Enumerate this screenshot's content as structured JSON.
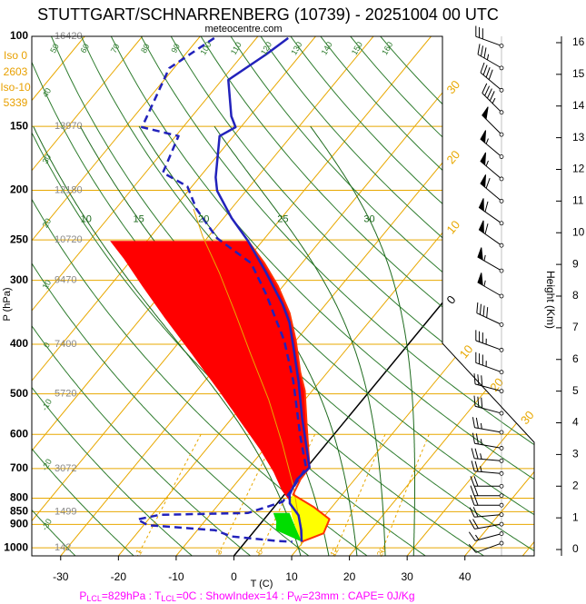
{
  "chart_data": {
    "type": "skewt",
    "title": "STUTTGART/SCHNARRENBERG (10739) - 20251004 00 UTC",
    "subtitle": "meteocentre.com",
    "xlabel": "T (C)",
    "ylabel": "P (hPa)",
    "y2label": "Height (Km)",
    "xlim": [
      -35,
      52
    ],
    "xticks": [
      -30,
      -20,
      -10,
      0,
      10,
      20,
      30,
      40
    ],
    "ylim": [
      1037,
      100
    ],
    "log_y": true,
    "yticks": [
      100,
      150,
      200,
      250,
      300,
      400,
      500,
      600,
      700,
      800,
      850,
      900,
      1000
    ],
    "y2lim": [
      -0.2,
      16.2
    ],
    "y2ticks": [
      0,
      1,
      2,
      3,
      4,
      5,
      6,
      7,
      8,
      9,
      10,
      11,
      12,
      13,
      14,
      15,
      16
    ],
    "gph_levels": [
      100,
      150,
      200,
      250,
      300,
      400,
      500,
      700,
      850,
      1000
    ],
    "gph": [
      16420,
      13970,
      12180,
      10720,
      9470,
      7400,
      5720,
      3072,
      1499,
      142
    ],
    "iso0_label": "Iso 0",
    "iso0_height": 2603,
    "iso10_label": "Iso-10",
    "iso10_height": 5339,
    "iso_color": "#e8a000",
    "isotherm_labels": [
      {
        "value": -30,
        "label": "30"
      },
      {
        "value": -20,
        "label": "20"
      },
      {
        "value": -10,
        "label": "10"
      },
      0,
      10,
      20,
      30
    ],
    "dry_adiabats": [
      -30,
      -20,
      -10,
      0,
      10,
      20,
      30,
      40,
      50,
      60,
      70,
      80,
      90,
      100,
      110,
      120,
      130,
      140,
      150,
      160
    ],
    "moist_adiabats": [
      10,
      15,
      20,
      25,
      30
    ],
    "mixing_ratios": [
      1,
      3,
      5,
      12,
      20
    ],
    "grid_color": "#e8a800",
    "adiabat_color": "#2f7d2f",
    "series": [
      {
        "color": "#2222bb",
        "dash": false,
        "p": [
          100.8,
          108.5,
          121.7,
          143.3,
          150.5,
          156.7,
          188.6,
          200.5,
          226.6,
          251.2,
          289.5,
          334,
          362.6,
          402,
          473,
          557,
          697,
          735,
          787,
          819,
          864,
          924,
          973
        ],
        "values": [
          -64.5,
          -66.0,
          -68.9,
          -63.2,
          -60.9,
          -62.4,
          -57.2,
          -55.0,
          -48.6,
          -42.5,
          -34.9,
          -27.5,
          -23.7,
          -19.8,
          -13.7,
          -7.9,
          0.5,
          0.0,
          0.9,
          2.2,
          5.4,
          8.0,
          9.7
        ]
      },
      {
        "color": "#2222bb",
        "dash": true,
        "p": [
          100.8,
          115.4,
          150.5,
          156.7,
          184.7,
          196.5,
          217.6,
          248,
          277.6,
          320.4,
          347.7,
          393.6,
          473,
          605,
          697,
          770,
          813,
          855,
          862,
          880,
          903,
          924,
          950,
          970,
          973
        ],
        "values": [
          -77.3,
          -80.8,
          -77.1,
          -69.5,
          -67.0,
          -60.8,
          -56.0,
          -48.3,
          -38.8,
          -31.6,
          -27.8,
          -22.0,
          -14.6,
          -5.6,
          -0.1,
          0.6,
          0.7,
          -3.7,
          -18.7,
          -21.9,
          -19.3,
          -6.9,
          -3.2,
          5.5,
          8.1
        ]
      },
      {
        "color": "#ff3300",
        "dash": false,
        "p": [
          251.2,
          277.6,
          307.7,
          347.7,
          393.6,
          454,
          493,
          580,
          697,
          735,
          787,
          832,
          879,
          937,
          960,
          973
        ],
        "values": [
          -42.5,
          -36.5,
          -30.9,
          -25.0,
          -20.0,
          -14.7,
          -11.3,
          -5.8,
          0.5,
          0.6,
          1.5,
          6.8,
          11.3,
          12.3,
          10.7,
          9.7
        ]
      },
      {
        "color": "#e8a800",
        "dash": false,
        "p": [
          217.6,
          246.2,
          289.5,
          347.7,
          418,
          513,
          628,
          757,
          895,
          990
        ],
        "values": [
          -56.5,
          -51.0,
          -43.0,
          -34.4,
          -25.9,
          -16.3,
          -7.5,
          0.3,
          6.7,
          10.2
        ]
      }
    ],
    "areas": [
      {
        "color": "#ff0000",
        "p": [
          251.2,
          251.2,
          277.6,
          307.7,
          347.7,
          393.6,
          454,
          493,
          580,
          697,
          735,
          767,
          807,
          773,
          711,
          642,
          569,
          493,
          418,
          355,
          307.7,
          272
        ],
        "values": [
          -66.4,
          -42.5,
          -36.5,
          -30.9,
          -25.0,
          -20.0,
          -14.7,
          -11.3,
          -5.8,
          0.5,
          0.6,
          0.3,
          1.6,
          -1.0,
          -5.1,
          -10.7,
          -17.8,
          -26.2,
          -36.1,
          -46.0,
          -54.4,
          -61.5
        ]
      },
      {
        "color": "#ffff00",
        "p": [
          787,
          832,
          879,
          937,
          960,
          973,
          924,
          870,
          826,
          807
        ],
        "values": [
          1.5,
          6.8,
          11.3,
          12.3,
          10.7,
          9.7,
          7.2,
          4.5,
          2.6,
          1.6
        ]
      },
      {
        "color": "#00dd00",
        "p": [
          855,
          855,
          924,
          973,
          924,
          890
        ],
        "values": [
          0.7,
          3.5,
          7.2,
          9.7,
          3.6,
          2.5
        ]
      }
    ],
    "winds": {
      "height_km": [
        0.2,
        0.5,
        0.8,
        1.1,
        1.4,
        1.7,
        2.0,
        2.4,
        2.8,
        3.2,
        3.7,
        4.3,
        5.0,
        5.6,
        6.3,
        7.1,
        8.0,
        8.8,
        9.6,
        10.3,
        11.0,
        11.7,
        12.4,
        13.1,
        13.8,
        14.5,
        15.2,
        15.9
      ],
      "speed_kt": [
        10,
        15,
        20,
        20,
        20,
        20,
        20,
        25,
        25,
        25,
        25,
        30,
        30,
        35,
        35,
        40,
        55,
        55,
        60,
        60,
        60,
        55,
        55,
        50,
        45,
        40,
        35,
        30
      ],
      "direction_deg": [
        250,
        255,
        260,
        265,
        270,
        270,
        270,
        275,
        275,
        280,
        280,
        285,
        285,
        290,
        290,
        295,
        300,
        300,
        305,
        305,
        310,
        310,
        310,
        315,
        315,
        310,
        300,
        290
      ]
    },
    "footer": [
      "P",
      "LCL",
      "=829hPa : T",
      "LCL",
      "=0C : ShowIndex=14 : P",
      "W",
      "=23mm : CAPE= 0J/Kg"
    ],
    "footer_color": "#ff00ff"
  }
}
